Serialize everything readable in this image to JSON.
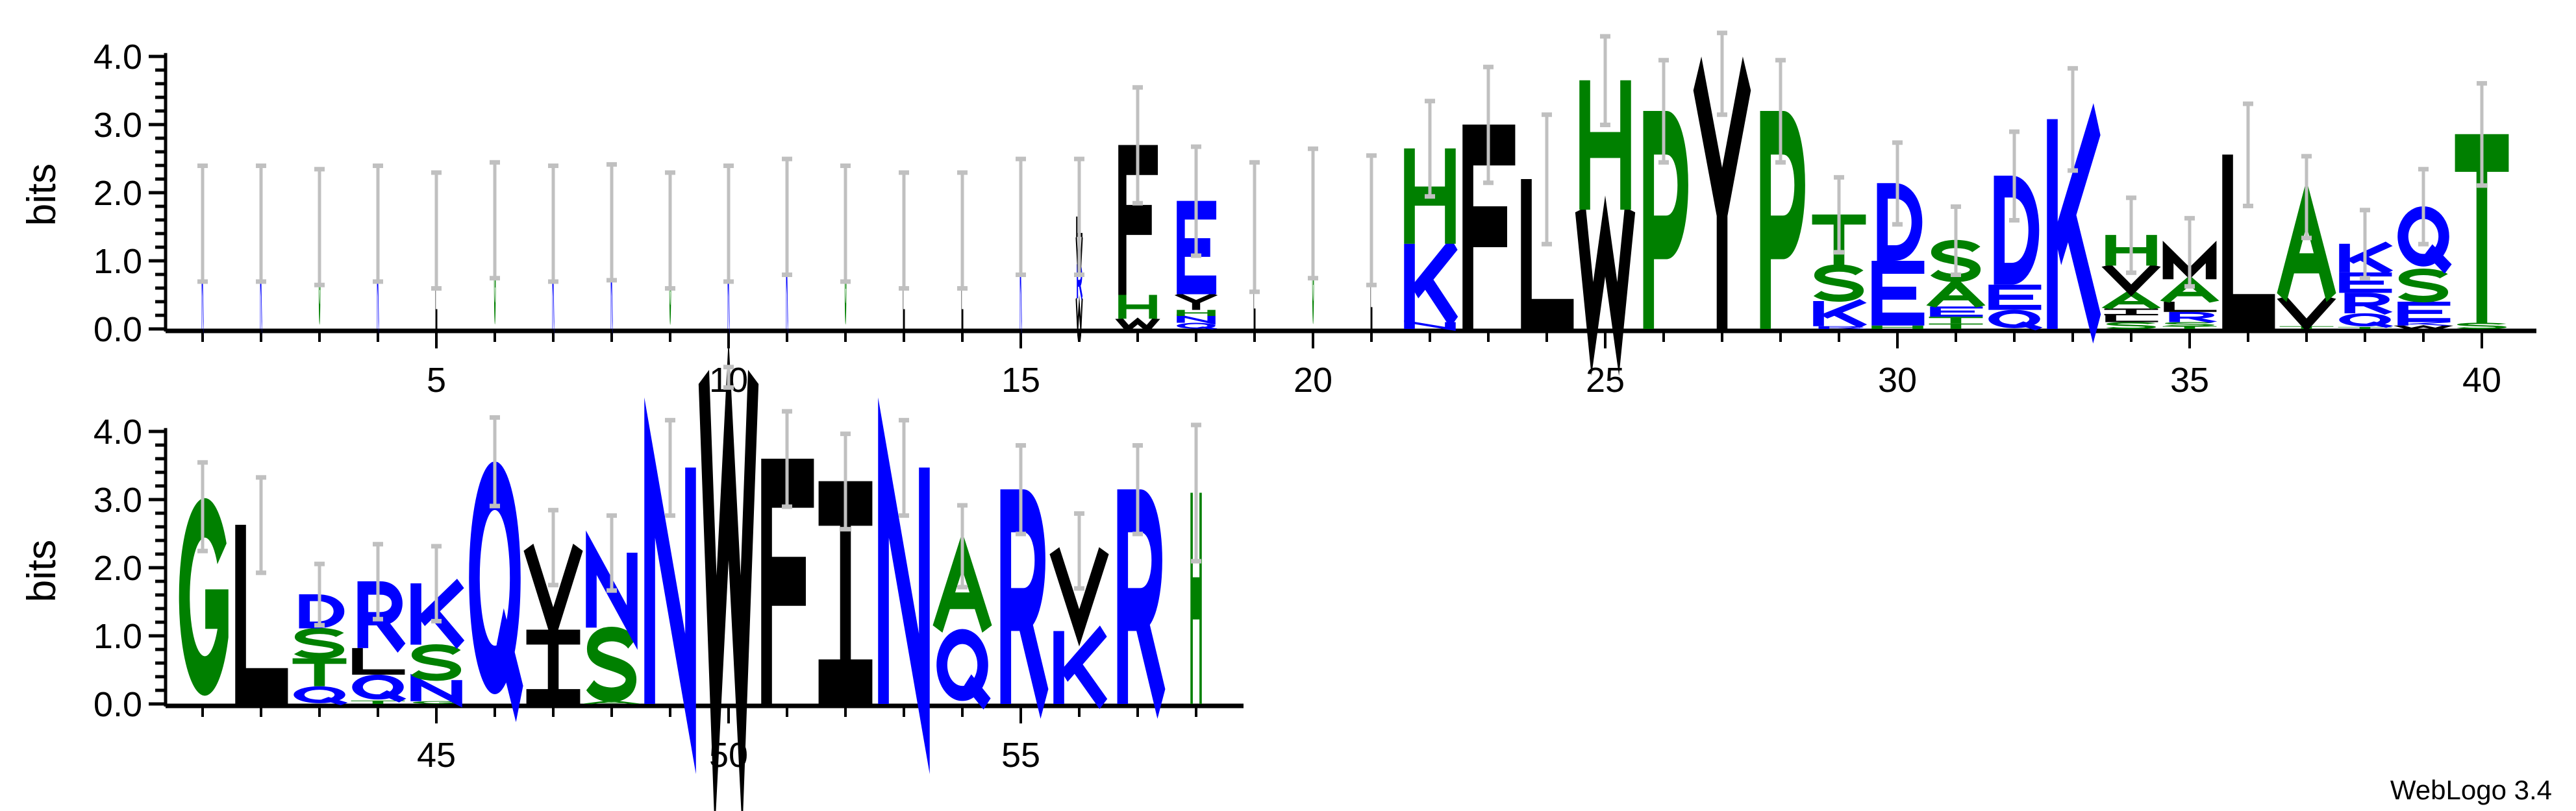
{
  "chart_data": {
    "type": "sequence-logo",
    "ylabel": "bits",
    "ylim": [
      0,
      4.3
    ],
    "y_ticks": [
      "0.0",
      "1.0",
      "2.0",
      "3.0",
      "4.0"
    ],
    "x_tick_labels_row1": [
      "5",
      "10",
      "15",
      "20",
      "25",
      "30",
      "35",
      "40"
    ],
    "x_tick_labels_row2": [
      "45",
      "50",
      "55"
    ],
    "rows": [
      [
        1,
        40
      ],
      [
        41,
        58
      ]
    ],
    "colors": {
      "green": "#008000",
      "blue": "#0000FF",
      "black": "#000000",
      "errorbar": "#C0C0C0",
      "G": "green",
      "S": "green",
      "T": "green",
      "H": "green",
      "A": "green",
      "P": "green",
      "K": "blue",
      "R": "blue",
      "D": "blue",
      "E": "blue",
      "Q": "blue",
      "N": "blue",
      "F": "black",
      "W": "black",
      "L": "black",
      "Y": "black",
      "V": "black",
      "I": "black",
      "M": "black",
      "C": "black"
    },
    "positions": [
      {
        "pos": 1,
        "weight": 0.03,
        "err": 0.85,
        "stack": [
          [
            "K",
            1.55
          ]
        ]
      },
      {
        "pos": 2,
        "weight": 0.03,
        "err": 0.85,
        "stack": [
          [
            "K",
            1.55
          ]
        ]
      },
      {
        "pos": 3,
        "weight": 0.03,
        "err": 0.85,
        "stack": [
          [
            "G",
            1.5
          ]
        ]
      },
      {
        "pos": 4,
        "weight": 0.03,
        "err": 0.85,
        "stack": [
          [
            "K",
            1.55
          ]
        ]
      },
      {
        "pos": 5,
        "weight": 0.03,
        "err": 0.85,
        "stack": [
          [
            "L",
            1.45
          ]
        ]
      },
      {
        "pos": 6,
        "weight": 0.03,
        "err": 0.85,
        "stack": [
          [
            "G",
            1.6
          ]
        ]
      },
      {
        "pos": 7,
        "weight": 0.03,
        "err": 0.85,
        "stack": [
          [
            "K",
            1.55
          ]
        ]
      },
      {
        "pos": 8,
        "weight": 0.03,
        "err": 0.85,
        "stack": [
          [
            "K",
            1.57
          ]
        ]
      },
      {
        "pos": 9,
        "weight": 0.03,
        "err": 0.85,
        "stack": [
          [
            "G",
            1.45
          ]
        ]
      },
      {
        "pos": 10,
        "weight": 0.03,
        "err": 0.85,
        "stack": [
          [
            "K",
            1.55
          ]
        ]
      },
      {
        "pos": 11,
        "weight": 0.03,
        "err": 0.85,
        "stack": [
          [
            "K",
            1.65
          ]
        ]
      },
      {
        "pos": 12,
        "weight": 0.03,
        "err": 0.85,
        "stack": [
          [
            "G",
            1.55
          ]
        ]
      },
      {
        "pos": 13,
        "weight": 0.03,
        "err": 0.85,
        "stack": [
          [
            "L",
            1.45
          ]
        ]
      },
      {
        "pos": 14,
        "weight": 0.03,
        "err": 0.85,
        "stack": [
          [
            "L",
            1.45
          ]
        ]
      },
      {
        "pos": 15,
        "weight": 0.03,
        "err": 0.85,
        "stack": [
          [
            "K",
            1.65
          ]
        ]
      },
      {
        "pos": 16,
        "weight": 0.12,
        "err": 0.85,
        "stack": [
          [
            "W",
            0.45
          ],
          [
            "R",
            0.5
          ],
          [
            "W",
            0.4
          ],
          [
            "L",
            0.3
          ]
        ]
      },
      {
        "pos": 17,
        "weight": 0.75,
        "err": 0.85,
        "stack": [
          [
            "W",
            0.15
          ],
          [
            "H",
            0.35
          ],
          [
            "F",
            2.2
          ]
        ]
      },
      {
        "pos": 18,
        "weight": 0.75,
        "err": 0.8,
        "stack": [
          [
            "Q",
            0.09
          ],
          [
            "N",
            0.1
          ],
          [
            "H",
            0.09
          ],
          [
            "Y",
            0.23
          ],
          [
            "E",
            1.37
          ]
        ]
      },
      {
        "pos": 19,
        "weight": 0.03,
        "err": 0.95,
        "stack": [
          [
            "L",
            1.5
          ]
        ]
      },
      {
        "pos": 20,
        "weight": 0.03,
        "err": 0.95,
        "stack": [
          [
            "G",
            1.7
          ]
        ]
      },
      {
        "pos": 21,
        "weight": 0.03,
        "err": 0.95,
        "stack": [
          [
            "L",
            1.6
          ]
        ]
      },
      {
        "pos": 22,
        "weight": 1,
        "err": 0.7,
        "stack": [
          [
            "N",
            0.1
          ],
          [
            "K",
            1.15
          ],
          [
            "H",
            1.4
          ]
        ]
      },
      {
        "pos": 23,
        "weight": 1,
        "err": 0.85,
        "stack": [
          [
            "F",
            3.0
          ]
        ]
      },
      {
        "pos": 24,
        "weight": 1,
        "err": 0.95,
        "stack": [
          [
            "L",
            2.2
          ]
        ]
      },
      {
        "pos": 25,
        "weight": 1,
        "err": 0.65,
        "stack": [
          [
            "W",
            1.75
          ],
          [
            "H",
            1.9
          ]
        ]
      },
      {
        "pos": 26,
        "weight": 1,
        "err": 0.75,
        "stack": [
          [
            "P",
            3.2
          ]
        ]
      },
      {
        "pos": 27,
        "weight": 1,
        "err": 0.6,
        "stack": [
          [
            "Y",
            3.75
          ]
        ]
      },
      {
        "pos": 28,
        "weight": 1,
        "err": 0.75,
        "stack": [
          [
            "P",
            3.2
          ]
        ]
      },
      {
        "pos": 29,
        "weight": 1,
        "err": 0.55,
        "stack": [
          [
            "R",
            0.04
          ],
          [
            "K",
            0.37
          ],
          [
            "S",
            0.53
          ],
          [
            "T",
            0.74
          ]
        ]
      },
      {
        "pos": 30,
        "weight": 1,
        "err": 0.6,
        "stack": [
          [
            "H",
            0.05
          ],
          [
            "E",
            0.95
          ],
          [
            "D",
            1.14
          ]
        ]
      },
      {
        "pos": 31,
        "weight": 1,
        "err": 0.5,
        "stack": [
          [
            "T",
            0.08
          ],
          [
            "T",
            0.1
          ],
          [
            "E",
            0.15
          ],
          [
            "A",
            0.37
          ],
          [
            "S",
            0.6
          ]
        ]
      },
      {
        "pos": 32,
        "weight": 1,
        "err": 0.65,
        "stack": [
          [
            "Q",
            0.28
          ],
          [
            "E",
            0.37
          ],
          [
            "D",
            1.6
          ]
        ]
      },
      {
        "pos": 33,
        "weight": 1,
        "err": 0.75,
        "stack": [
          [
            "K",
            3.08
          ]
        ]
      },
      {
        "pos": 34,
        "weight": 1,
        "err": 0.55,
        "stack": [
          [
            "S",
            0.1
          ],
          [
            "L",
            0.1
          ],
          [
            "I",
            0.1
          ],
          [
            "A",
            0.25
          ],
          [
            "V",
            0.38
          ],
          [
            "H",
            0.45
          ]
        ]
      },
      {
        "pos": 35,
        "weight": 1,
        "err": 0.5,
        "stack": [
          [
            "T",
            0.04
          ],
          [
            "S",
            0.06
          ],
          [
            "R",
            0.15
          ],
          [
            "L",
            0.15
          ],
          [
            "A",
            0.33
          ],
          [
            "M",
            0.4
          ]
        ]
      },
      {
        "pos": 36,
        "weight": 1,
        "err": 0.75,
        "stack": [
          [
            "L",
            2.56
          ]
        ]
      },
      {
        "pos": 37,
        "weight": 1,
        "err": 0.6,
        "stack": [
          [
            "T",
            0.04
          ],
          [
            "V",
            0.42
          ],
          [
            "A",
            1.48
          ]
        ]
      },
      {
        "pos": 38,
        "weight": 1,
        "err": 0.5,
        "stack": [
          [
            "T",
            0.03
          ],
          [
            "Q",
            0.2
          ],
          [
            "R",
            0.3
          ],
          [
            "E",
            0.3
          ],
          [
            "K",
            0.42
          ]
        ]
      },
      {
        "pos": 39,
        "weight": 1,
        "err": 0.55,
        "stack": [
          [
            "W",
            0.05
          ],
          [
            "K",
            0.05
          ],
          [
            "E",
            0.3
          ],
          [
            "S",
            0.48
          ],
          [
            "Q",
            0.92
          ]
        ]
      },
      {
        "pos": 40,
        "weight": 1,
        "err": 0.75,
        "stack": [
          [
            "S",
            0.09
          ],
          [
            "T",
            2.77
          ]
        ]
      },
      {
        "pos": 41,
        "weight": 1,
        "err": 0.65,
        "stack": [
          [
            "G",
            2.9
          ]
        ]
      },
      {
        "pos": 42,
        "weight": 1,
        "err": 0.7,
        "stack": [
          [
            "L",
            2.63
          ]
        ]
      },
      {
        "pos": 43,
        "weight": 1,
        "err": 0.45,
        "stack": [
          [
            "Q",
            0.26
          ],
          [
            "T",
            0.41
          ],
          [
            "S",
            0.44
          ],
          [
            "D",
            0.5
          ]
        ]
      },
      {
        "pos": 44,
        "weight": 1,
        "err": 0.55,
        "stack": [
          [
            "T",
            0.05
          ],
          [
            "Q",
            0.38
          ],
          [
            "L",
            0.39
          ],
          [
            "R",
            0.98
          ]
        ]
      },
      {
        "pos": 45,
        "weight": 1,
        "err": 0.55,
        "stack": [
          [
            "G",
            0.04
          ],
          [
            "N",
            0.31
          ],
          [
            "S",
            0.52
          ],
          [
            "K",
            0.9
          ]
        ]
      },
      {
        "pos": 46,
        "weight": 1,
        "err": 0.65,
        "stack": [
          [
            "Q",
            3.56
          ]
        ]
      },
      {
        "pos": 47,
        "weight": 1,
        "err": 0.55,
        "stack": [
          [
            "I",
            1.09
          ],
          [
            "V",
            1.21
          ]
        ]
      },
      {
        "pos": 48,
        "weight": 1,
        "err": 0.55,
        "stack": [
          [
            "A",
            0.05
          ],
          [
            "S",
            1.07
          ],
          [
            "N",
            1.1
          ]
        ]
      },
      {
        "pos": 49,
        "weight": 1,
        "err": 0.7,
        "stack": [
          [
            "N",
            3.47
          ]
        ]
      },
      {
        "pos": 50,
        "weight": 1,
        "err": 0.15,
        "stack": [
          [
            "W",
            4.8
          ]
        ]
      },
      {
        "pos": 51,
        "weight": 1,
        "err": 0.7,
        "stack": [
          [
            "F",
            3.6
          ]
        ]
      },
      {
        "pos": 52,
        "weight": 1,
        "err": 0.7,
        "stack": [
          [
            "I",
            3.27
          ]
        ]
      },
      {
        "pos": 53,
        "weight": 1,
        "err": 0.7,
        "stack": [
          [
            "N",
            3.47
          ]
        ]
      },
      {
        "pos": 54,
        "weight": 1,
        "err": 0.6,
        "stack": [
          [
            "Q",
            1.1
          ],
          [
            "A",
            1.22
          ]
        ]
      },
      {
        "pos": 55,
        "weight": 1,
        "err": 0.65,
        "stack": [
          [
            "R",
            3.15
          ]
        ]
      },
      {
        "pos": 56,
        "weight": 1,
        "err": 0.55,
        "stack": [
          [
            "K",
            1.07
          ],
          [
            "V",
            1.18
          ]
        ]
      },
      {
        "pos": 57,
        "weight": 1,
        "err": 0.65,
        "stack": [
          [
            "R",
            3.15
          ]
        ]
      },
      {
        "pos": 58,
        "weight": 0.22,
        "err": 1.0,
        "stack": [
          [
            "H",
            3.1
          ]
        ]
      }
    ]
  },
  "footer": "WebLogo 3.4"
}
